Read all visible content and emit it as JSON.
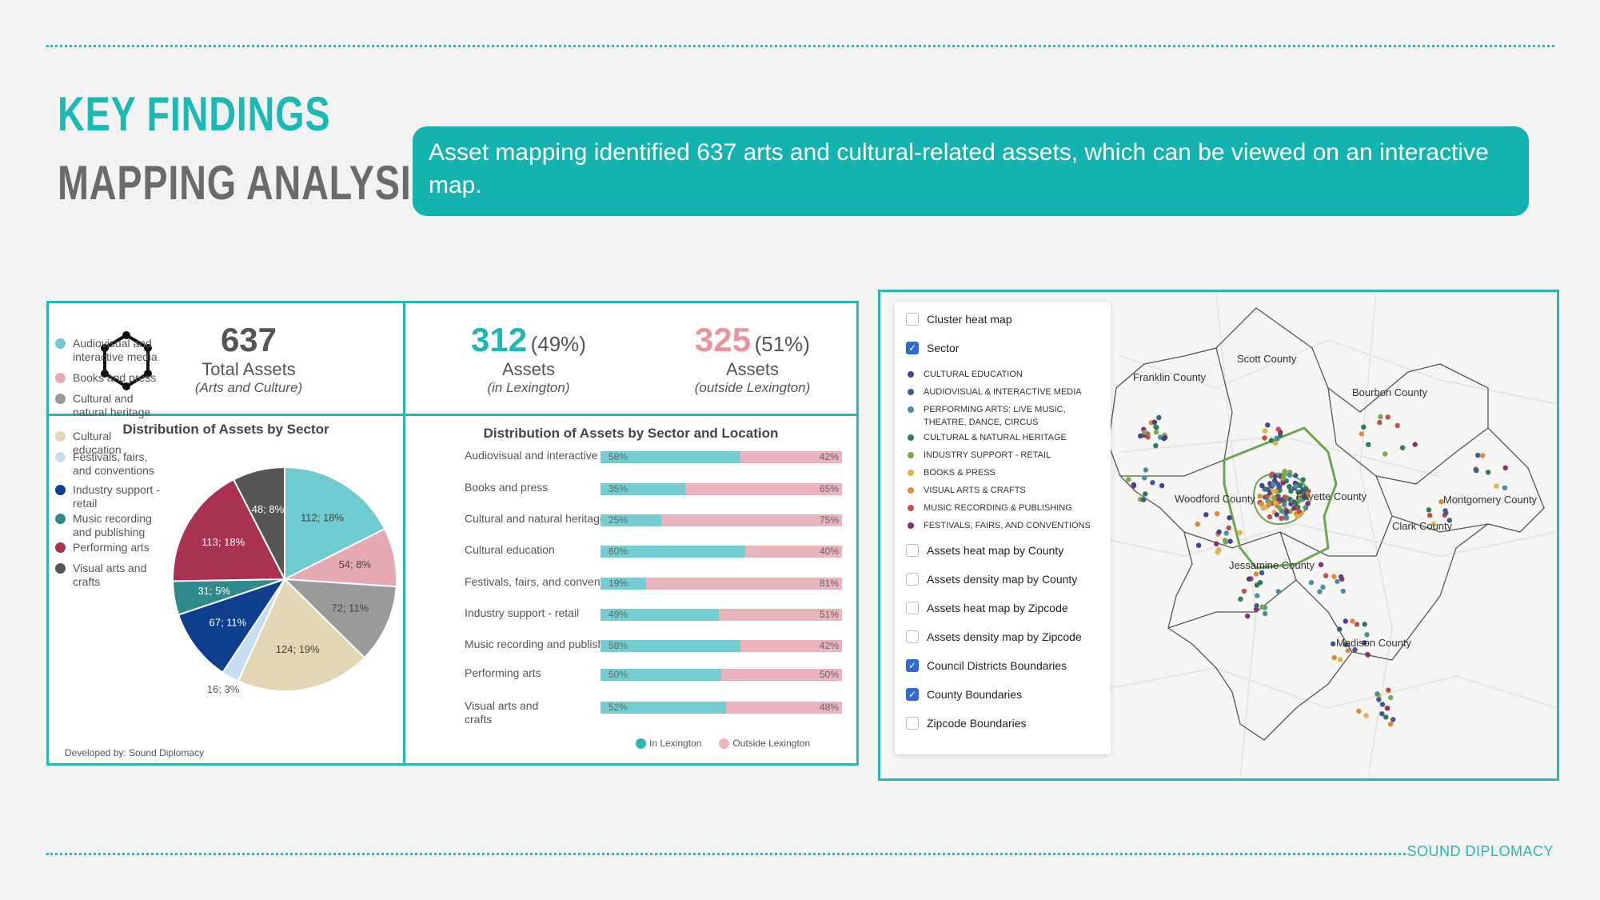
{
  "header": {
    "title_line1": "KEY FINDINGS",
    "title_line2": "MAPPING ANALYSIS",
    "banner_text": "Asset mapping identified 637 arts and cultural-related assets, which can be viewed on an interactive map."
  },
  "stats": {
    "total": {
      "value": "637",
      "label": "Total Assets",
      "sub": "(Arts and Culture)",
      "icon": "hexagon-network-icon"
    },
    "lexington": {
      "value": "312",
      "pct": "(49%)",
      "label": "Assets",
      "sub": "(in Lexington)",
      "color": "#1cb8b4"
    },
    "outside": {
      "value": "325",
      "pct": "(51%)",
      "label": "Assets",
      "sub": "(outside Lexington)",
      "color": "#e8939d"
    }
  },
  "pie_title": "Distribution of Assets by Sector",
  "bar_title": "Distribution of Assets by Sector and Location",
  "credit": "Developed by: Sound Diplomacy",
  "pie_legend": [
    {
      "label": "Audiovisual and interactive media",
      "color": "#6ecbd2"
    },
    {
      "label": "Books and press",
      "color": "#e6a8b3"
    },
    {
      "label": "Cultural and natural heritage",
      "color": "#9a9a9a"
    },
    {
      "label": "Cultural education",
      "color": "#e2d6b4"
    },
    {
      "label": "Festivals, fairs, and conventions",
      "color": "#c6def2"
    },
    {
      "label": "Industry support - retail",
      "color": "#0e3f8c"
    },
    {
      "label": "Music recording and publishing",
      "color": "#2f8a8c"
    },
    {
      "label": "Performing arts",
      "color": "#a8324f"
    },
    {
      "label": "Visual arts and crafts",
      "color": "#555555"
    }
  ],
  "chart_data": [
    {
      "type": "pie",
      "title": "Distribution of Assets by Sector",
      "slices": [
        {
          "label": "Audiovisual and interactive media",
          "value": 112,
          "pct": 18,
          "text": "112; 18%",
          "color": "#6ecbd2"
        },
        {
          "label": "Books and press",
          "value": 54,
          "pct": 8,
          "text": "54; 8%",
          "color": "#e6a8b3"
        },
        {
          "label": "Cultural and natural heritage",
          "value": 72,
          "pct": 11,
          "text": "72; 11%",
          "color": "#9a9a9a"
        },
        {
          "label": "Cultural education",
          "value": 124,
          "pct": 19,
          "text": "124; 19%",
          "color": "#e2d6b4"
        },
        {
          "label": "Festivals, fairs, and conventions",
          "value": 16,
          "pct": 3,
          "text": "16; 3%",
          "color": "#c6def2"
        },
        {
          "label": "Industry support - retail",
          "value": 67,
          "pct": 11,
          "text": "67; 11%",
          "color": "#0e3f8c"
        },
        {
          "label": "Music recording and publishing",
          "value": 31,
          "pct": 5,
          "text": "31; 5%",
          "color": "#2f8a8c"
        },
        {
          "label": "Performing arts",
          "value": 113,
          "pct": 18,
          "text": "113; 18%",
          "color": "#a8324f"
        },
        {
          "label": "Visual arts and crafts",
          "value": 48,
          "pct": 8,
          "text": "48; 8%",
          "color": "#555555"
        }
      ]
    },
    {
      "type": "bar",
      "stacked": true,
      "orientation": "horizontal",
      "title": "Distribution of Assets by Sector and Location",
      "categories": [
        "Audiovisual and interactive media",
        "Books and press",
        "Cultural and natural heritage",
        "Cultural education",
        "Festivals, fairs, and conventions",
        "Industry support - retail",
        "Music recording and publishing",
        "Performing arts",
        "Visual arts and crafts"
      ],
      "series": [
        {
          "name": "In Lexington",
          "color": "#74cdd0",
          "values": [
            58,
            35,
            25,
            60,
            19,
            49,
            58,
            50,
            52
          ]
        },
        {
          "name": "Outside Lexington",
          "color": "#e9b4be",
          "values": [
            42,
            65,
            75,
            40,
            81,
            51,
            42,
            50,
            48
          ]
        }
      ],
      "legend": "bottom-right"
    }
  ],
  "map": {
    "layers": [
      {
        "label": "Cluster heat map",
        "checked": false
      },
      {
        "label": "Sector",
        "checked": true
      }
    ],
    "sectors": [
      {
        "label": "CULTURAL EDUCATION",
        "color": "#4b3f8f"
      },
      {
        "label": "AUDIOVISUAL & INTERACTIVE MEDIA",
        "color": "#3f5a8f"
      },
      {
        "label": "PERFORMING ARTS: LIVE MUSIC, THEATRE, DANCE, CIRCUS",
        "color": "#4a8f9a"
      },
      {
        "label": "CULTURAL & NATURAL HERITAGE",
        "color": "#2f7a5a"
      },
      {
        "label": "INDUSTRY SUPPORT - RETAIL",
        "color": "#7aa84a"
      },
      {
        "label": "BOOKS & PRESS",
        "color": "#e0b44a"
      },
      {
        "label": "VISUAL ARTS & CRAFTS",
        "color": "#d98a3a"
      },
      {
        "label": "MUSIC RECORDING & PUBLISHING",
        "color": "#c0504a"
      },
      {
        "label": "FESTIVALS, FAIRS, AND CONVENTIONS",
        "color": "#8a2f6a"
      }
    ],
    "more_layers": [
      {
        "label": "Assets heat map by County",
        "checked": false
      },
      {
        "label": "Assets density map by County",
        "checked": false
      },
      {
        "label": "Assets heat map by Zipcode",
        "checked": false
      },
      {
        "label": "Assets density map by Zipcode",
        "checked": false
      },
      {
        "label": "Council Districts Boundaries",
        "checked": true
      },
      {
        "label": "County Boundaries",
        "checked": true
      },
      {
        "label": "Zipcode Boundaries",
        "checked": false
      }
    ],
    "county_labels": [
      "Scott County",
      "Franklin County",
      "Bourbon County",
      "Woodford County",
      "Fayette County",
      "Montgomery County",
      "Clark County",
      "Jessamine County",
      "Madison County"
    ]
  },
  "footer": {
    "brand": "SOUND DIPLOMACY"
  }
}
